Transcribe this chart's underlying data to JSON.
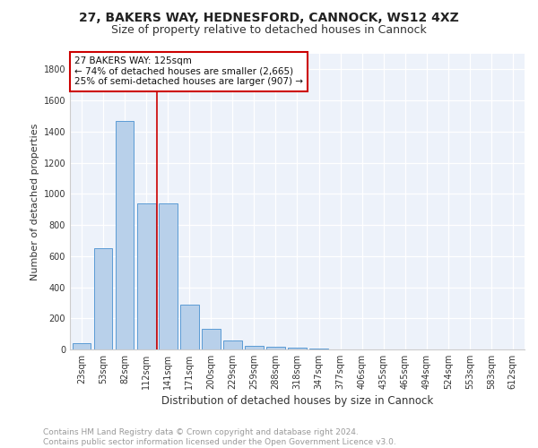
{
  "title": "27, BAKERS WAY, HEDNESFORD, CANNOCK, WS12 4XZ",
  "subtitle": "Size of property relative to detached houses in Cannock",
  "xlabel": "Distribution of detached houses by size in Cannock",
  "ylabel": "Number of detached properties",
  "categories": [
    "23sqm",
    "53sqm",
    "82sqm",
    "112sqm",
    "141sqm",
    "171sqm",
    "200sqm",
    "229sqm",
    "259sqm",
    "288sqm",
    "318sqm",
    "347sqm",
    "377sqm",
    "406sqm",
    "435sqm",
    "465sqm",
    "494sqm",
    "524sqm",
    "553sqm",
    "583sqm",
    "612sqm"
  ],
  "values": [
    40,
    650,
    1470,
    940,
    940,
    290,
    130,
    60,
    25,
    15,
    10,
    5,
    0,
    0,
    0,
    0,
    0,
    0,
    0,
    0,
    0
  ],
  "bar_color": "#b8d0ea",
  "bar_edge_color": "#5b9bd5",
  "bar_edge_width": 0.7,
  "vline_x": 3.5,
  "vline_color": "#cc0000",
  "annotation_line1": "27 BAKERS WAY: 125sqm",
  "annotation_line2": "← 74% of detached houses are smaller (2,665)",
  "annotation_line3": "25% of semi-detached houses are larger (907) →",
  "annotation_box_color": "#ffffff",
  "annotation_box_edge_color": "#cc0000",
  "ylim": [
    0,
    1900
  ],
  "yticks": [
    0,
    200,
    400,
    600,
    800,
    1000,
    1200,
    1400,
    1600,
    1800
  ],
  "background_color": "#edf2fa",
  "grid_color": "#ffffff",
  "footer_text": "Contains HM Land Registry data © Crown copyright and database right 2024.\nContains public sector information licensed under the Open Government Licence v3.0.",
  "title_fontsize": 10,
  "subtitle_fontsize": 9,
  "xlabel_fontsize": 8.5,
  "ylabel_fontsize": 8,
  "tick_fontsize": 7,
  "annotation_fontsize": 7.5,
  "footer_fontsize": 6.5
}
